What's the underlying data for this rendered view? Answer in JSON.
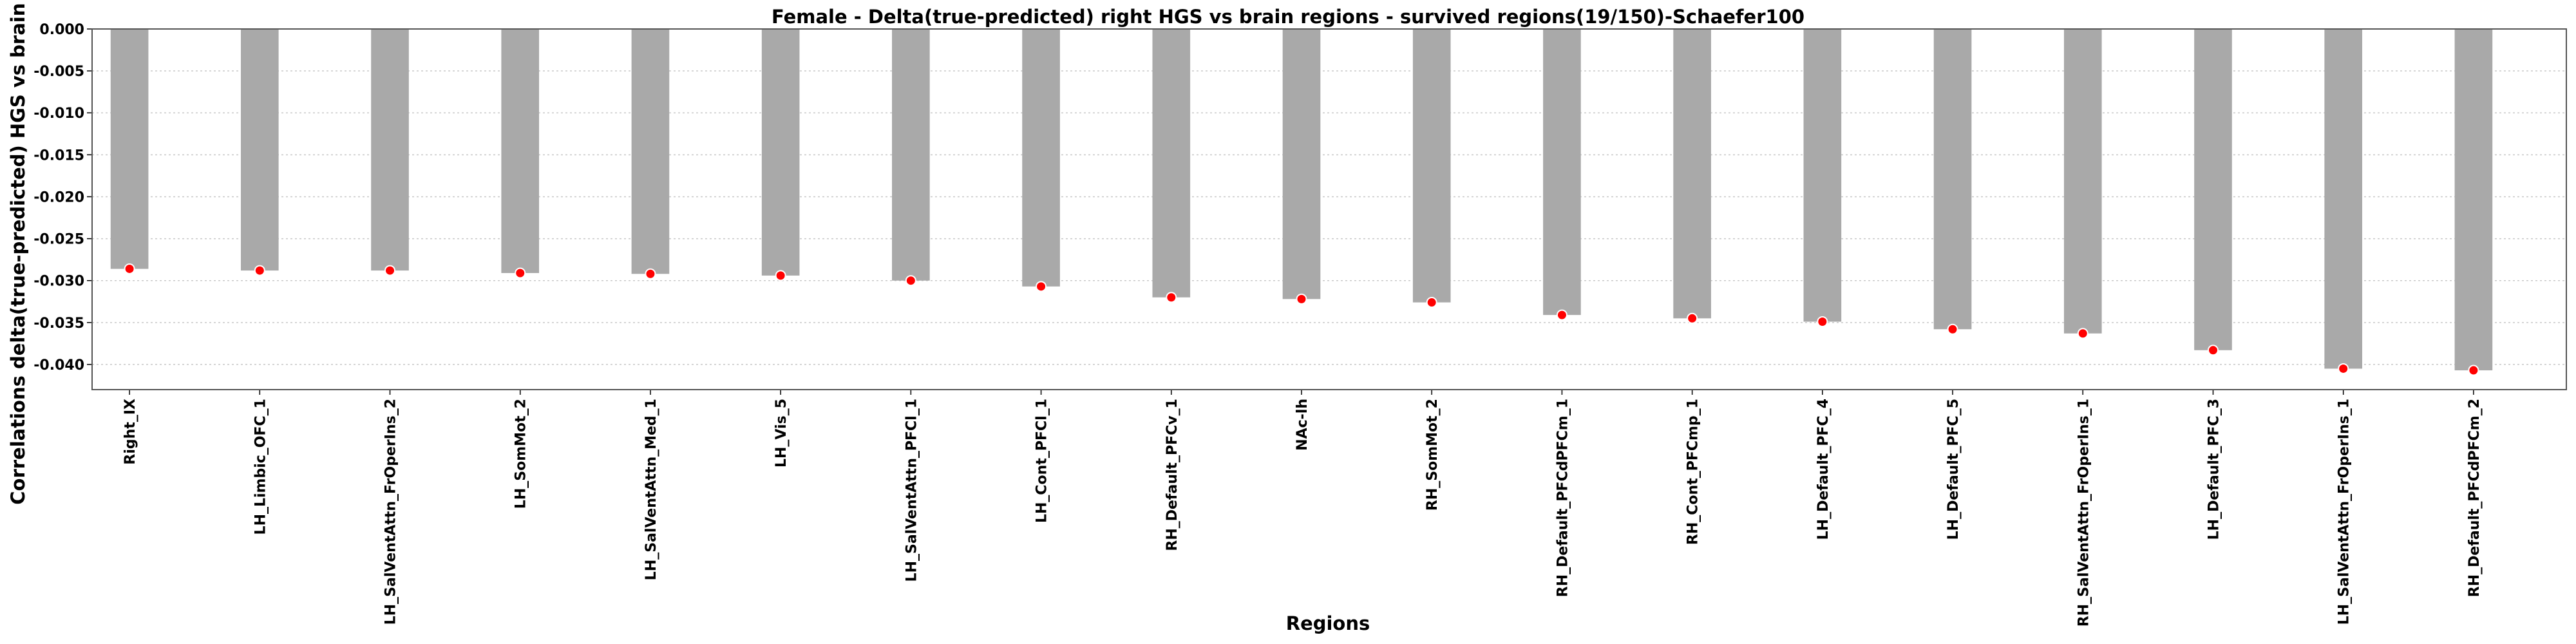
{
  "chart_data": {
    "type": "bar",
    "title": "Female - Delta(true-predicted) right HGS vs brain regions - survived regions(19/150)-Schaefer100",
    "xlabel": "Regions",
    "ylabel": "Correlations delta(true-predicted) HGS vs brain r",
    "ylim": [
      -0.043,
      0.0
    ],
    "yticks": [
      0.0,
      -0.005,
      -0.01,
      -0.015,
      -0.02,
      -0.025,
      -0.03,
      -0.035,
      -0.04
    ],
    "ytick_labels": [
      "0.000",
      "-0.005",
      "-0.010",
      "-0.015",
      "-0.020",
      "-0.025",
      "-0.030",
      "-0.035",
      "-0.040"
    ],
    "grid": "horizontal dotted",
    "categories": [
      "Right_IX",
      "LH_Limbic_OFC_1",
      "LH_SalVentAttn_FrOperIns_2",
      "LH_SomMot_2",
      "LH_SalVentAttn_Med_1",
      "LH_Vis_5",
      "LH_SalVentAttn_PFCl_1",
      "LH_Cont_PFCl_1",
      "RH_Default_PFCv_1",
      "NAc-lh",
      "RH_SomMot_2",
      "RH_Default_PFCdPFCm_1",
      "RH_Cont_PFCmp_1",
      "LH_Default_PFC_4",
      "LH_Default_PFC_5",
      "RH_SalVentAttn_FrOperIns_1",
      "LH_Default_PFC_3",
      "LH_SalVentAttn_FrOperIns_1",
      "RH_Default_PFCdPFCm_2"
    ],
    "values": [
      -0.0286,
      -0.0288,
      -0.0288,
      -0.0291,
      -0.0292,
      -0.0294,
      -0.03,
      -0.0307,
      -0.032,
      -0.0322,
      -0.0326,
      -0.0341,
      -0.0345,
      -0.0349,
      -0.0358,
      -0.0363,
      -0.0383,
      -0.0405,
      -0.0407
    ],
    "colors": {
      "bar": "#a9a9a9",
      "marker": "#ff0000",
      "marker_edge": "#ffffff",
      "grid": "#c8c8c8"
    }
  }
}
